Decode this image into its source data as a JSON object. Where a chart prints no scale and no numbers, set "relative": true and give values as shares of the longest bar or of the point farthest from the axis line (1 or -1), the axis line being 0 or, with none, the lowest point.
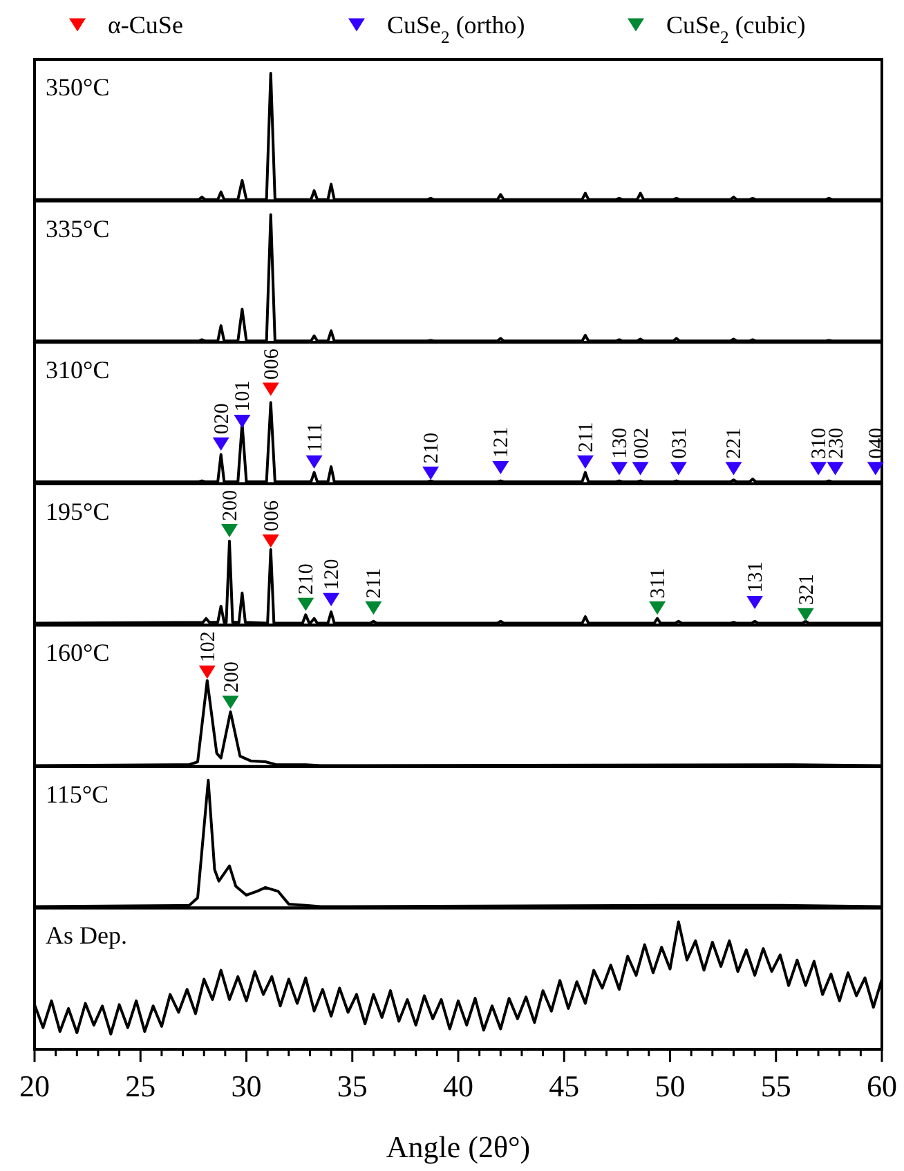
{
  "chart_data": [
    {
      "type": "line",
      "relative": true,
      "xlim": [
        20,
        60
      ],
      "annotations": [
        "350°C"
      ],
      "series": [
        {
          "color": "#000000",
          "x": [
            20,
            27.75,
            27.9,
            28.05,
            28.65,
            28.8,
            28.95,
            29.6,
            29.8,
            30.0,
            30.95,
            31.15,
            31.35,
            33.05,
            33.2,
            33.35,
            33.85,
            34.0,
            34.15,
            38.55,
            38.7,
            38.85,
            41.85,
            42.0,
            42.15,
            45.85,
            46.0,
            46.15,
            47.45,
            47.6,
            47.75,
            48.45,
            48.6,
            48.75,
            50.15,
            50.3,
            50.45,
            52.85,
            53.0,
            53.15,
            53.75,
            53.9,
            54.05,
            57.35,
            57.5,
            57.65,
            60
          ],
          "values": [
            0.01,
            0.01,
            0.03,
            0.01,
            0.01,
            0.07,
            0.01,
            0.01,
            0.16,
            0.01,
            0.01,
            1,
            0.01,
            0.01,
            0.08,
            0.01,
            0.01,
            0.13,
            0.01,
            0.01,
            0.02,
            0.01,
            0.01,
            0.05,
            0.01,
            0.01,
            0.06,
            0.01,
            0.01,
            0.02,
            0.01,
            0.01,
            0.06,
            0.01,
            0.01,
            0.02,
            0.01,
            0.01,
            0.03,
            0.01,
            0.01,
            0.02,
            0.01,
            0.01,
            0.02,
            0.01,
            0.01
          ]
        }
      ]
    },
    {
      "type": "line",
      "relative": true,
      "xlim": [
        20,
        60
      ],
      "annotations": [
        "335°C"
      ],
      "series": [
        {
          "color": "#000000",
          "x": [
            20,
            27.75,
            27.9,
            28.05,
            28.65,
            28.8,
            28.95,
            29.6,
            29.8,
            30.0,
            30.95,
            31.15,
            31.35,
            33.05,
            33.2,
            33.35,
            33.85,
            34.0,
            34.15,
            38.55,
            38.7,
            38.85,
            41.85,
            42.0,
            42.15,
            45.85,
            46.0,
            46.15,
            47.45,
            47.6,
            47.75,
            48.45,
            48.6,
            48.75,
            50.15,
            50.3,
            50.45,
            52.85,
            53.0,
            53.15,
            53.75,
            53.9,
            54.05,
            57.35,
            57.5,
            57.65,
            60
          ],
          "values": [
            0.01,
            0.01,
            0.02,
            0.01,
            0.01,
            0.13,
            0.01,
            0.01,
            0.26,
            0.01,
            0.01,
            1,
            0.01,
            0.01,
            0.05,
            0.01,
            0.01,
            0.09,
            0.01,
            0.01,
            0.015,
            0.01,
            0.01,
            0.03,
            0.01,
            0.01,
            0.055,
            0.01,
            0.01,
            0.02,
            0.01,
            0.01,
            0.025,
            0.01,
            0.01,
            0.03,
            0.01,
            0.01,
            0.025,
            0.01,
            0.01,
            0.02,
            0.01,
            0.01,
            0.015,
            0.01,
            0.01
          ]
        }
      ]
    },
    {
      "type": "line",
      "relative": true,
      "xlim": [
        20,
        60
      ],
      "legend": "top",
      "annotations": [
        "310°C",
        {
          "text": "020",
          "x": 28.8,
          "y": 0.42
        },
        {
          "text": "101",
          "x": 29.8,
          "y": 0.66
        },
        {
          "text": "006",
          "x": 31.15,
          "y": 1
        },
        {
          "text": "111",
          "x": 33.2,
          "y": 0.23
        },
        {
          "text": "210",
          "x": 38.7,
          "y": 0.11
        },
        {
          "text": "121",
          "x": 42.0,
          "y": 0.17
        },
        {
          "text": "211",
          "x": 46.0,
          "y": 0.23
        },
        {
          "text": "130",
          "x": 47.6,
          "y": 0.16
        },
        {
          "text": "002",
          "x": 48.6,
          "y": 0.16
        },
        {
          "text": "031",
          "x": 50.4,
          "y": 0.16
        },
        {
          "text": "221",
          "x": 53.0,
          "y": 0.16
        },
        {
          "text": "310",
          "x": 57.0,
          "y": 0.16
        },
        {
          "text": "230",
          "x": 57.8,
          "y": 0.16
        },
        {
          "text": "040",
          "x": 59.7,
          "y": 0.16
        }
      ],
      "series": [
        {
          "color": "#000000",
          "x": [
            20,
            27.75,
            27.9,
            28.05,
            28.65,
            28.8,
            28.95,
            29.6,
            29.8,
            30.0,
            30.95,
            31.15,
            31.35,
            33.05,
            33.2,
            33.35,
            33.85,
            34.0,
            34.15,
            38.55,
            38.7,
            38.85,
            41.85,
            42.0,
            42.15,
            45.85,
            46.0,
            46.15,
            47.45,
            47.6,
            47.75,
            48.45,
            48.6,
            48.75,
            50.15,
            50.3,
            50.45,
            52.85,
            53.0,
            53.15,
            53.75,
            53.9,
            54.05,
            57.35,
            57.5,
            57.65,
            60
          ],
          "values": [
            0.02,
            0.02,
            0.03,
            0.02,
            0.02,
            0.31,
            0.02,
            0.02,
            0.64,
            0.02,
            0.02,
            0.86,
            0.02,
            0.02,
            0.12,
            0.02,
            0.02,
            0.18,
            0.02,
            0.02,
            0.03,
            0.02,
            0.02,
            0.03,
            0.02,
            0.02,
            0.12,
            0.02,
            0.02,
            0.03,
            0.02,
            0.02,
            0.03,
            0.02,
            0.02,
            0.03,
            0.02,
            0.02,
            0.04,
            0.02,
            0.02,
            0.05,
            0.02,
            0.02,
            0.03,
            0.02,
            0.02
          ]
        },
        {
          "type": "scatter",
          "name": "α-CuSe",
          "color": "#ff0000",
          "marker": "triangle",
          "x": [
            31.15
          ],
          "values": [
            1
          ]
        },
        {
          "type": "scatter",
          "name": "CuSe$_{2}$ (ortho)",
          "color": "#3300ff",
          "marker": "triangle",
          "x": [
            28.8,
            29.8,
            33.2,
            38.7,
            42.0,
            46.0,
            47.6,
            48.6,
            50.4,
            53.0,
            57.0,
            57.8,
            59.7
          ],
          "values": [
            0.42,
            0.66,
            0.23,
            0.11,
            0.17,
            0.23,
            0.16,
            0.16,
            0.16,
            0.16,
            0.16,
            0.16,
            0.16
          ]
        }
      ]
    },
    {
      "type": "line",
      "relative": true,
      "xlim": [
        20,
        60
      ],
      "annotations": [
        "195°C",
        {
          "text": "200",
          "x": 29.2,
          "y": 1
        },
        {
          "text": "006",
          "x": 31.15,
          "y": 0.89
        },
        {
          "text": "210",
          "x": 32.8,
          "y": 0.22
        },
        {
          "text": "120",
          "x": 34.0,
          "y": 0.27
        },
        {
          "text": "211",
          "x": 36.0,
          "y": 0.18
        },
        {
          "text": "311",
          "x": 49.4,
          "y": 0.18
        },
        {
          "text": "131",
          "x": 54.0,
          "y": 0.24
        },
        {
          "text": "321",
          "x": 56.4,
          "y": 0.11
        }
      ],
      "series": [
        {
          "color": "#000000",
          "x": [
            20,
            27.95,
            28.1,
            28.25,
            28.65,
            28.8,
            28.95,
            29.05,
            29.2,
            29.35,
            29.65,
            29.8,
            29.95,
            31.0,
            31.15,
            31.3,
            32.65,
            32.8,
            32.95,
            33.05,
            33.2,
            33.35,
            33.85,
            34.0,
            34.15,
            35.85,
            36.0,
            36.15,
            41.85,
            42.0,
            42.15,
            45.85,
            46.0,
            46.15,
            49.25,
            49.4,
            49.55,
            50.25,
            50.4,
            50.55,
            52.85,
            53.0,
            53.15,
            53.85,
            54.0,
            54.15,
            56.25,
            56.4,
            56.55,
            60
          ],
          "values": [
            0.02,
            0.03,
            0.07,
            0.03,
            0.03,
            0.2,
            0.03,
            0.03,
            0.89,
            0.03,
            0.03,
            0.34,
            0.03,
            0.02,
            0.8,
            0.02,
            0.02,
            0.11,
            0.03,
            0.03,
            0.07,
            0.02,
            0.02,
            0.14,
            0.02,
            0.02,
            0.04,
            0.02,
            0.02,
            0.04,
            0.02,
            0.02,
            0.09,
            0.02,
            0.02,
            0.07,
            0.02,
            0.02,
            0.04,
            0.02,
            0.02,
            0.03,
            0.02,
            0.02,
            0.04,
            0.02,
            0.02,
            0.04,
            0.02,
            0.02
          ]
        },
        {
          "type": "scatter",
          "name": "α-CuSe",
          "color": "#ff0000",
          "marker": "triangle",
          "x": [
            31.15
          ],
          "values": [
            0.89
          ]
        },
        {
          "type": "scatter",
          "name": "CuSe$_{2}$ (ortho)",
          "color": "#3300ff",
          "marker": "triangle",
          "x": [
            34.0,
            54.0
          ],
          "values": [
            0.27,
            0.24
          ]
        },
        {
          "type": "scatter",
          "name": "CuSe$_{2}$ (cubic)",
          "color": "#008833",
          "marker": "triangle",
          "x": [
            29.2,
            32.8,
            36.0,
            49.4,
            56.4
          ],
          "values": [
            1,
            0.22,
            0.18,
            0.18,
            0.11
          ]
        }
      ]
    },
    {
      "type": "line",
      "relative": true,
      "xlim": [
        20,
        60
      ],
      "annotations": [
        "160°C",
        {
          "text": "102",
          "x": 28.15,
          "y": 1
        },
        {
          "text": "200",
          "x": 29.25,
          "y": 0.68
        }
      ],
      "series": [
        {
          "color": "#000000",
          "x": [
            20,
            27.3,
            27.7,
            28.15,
            28.6,
            28.8,
            29.25,
            29.7,
            30.2,
            30.9,
            31.4,
            32.8,
            33.5,
            55.8,
            60
          ],
          "values": [
            0.01,
            0.02,
            0.05,
            0.91,
            0.14,
            0.09,
            0.58,
            0.11,
            0.06,
            0.05,
            0.02,
            0.02,
            0.01,
            0.02,
            0.01
          ]
        },
        {
          "type": "scatter",
          "name": "α-CuSe",
          "color": "#ff0000",
          "marker": "triangle",
          "x": [
            28.15
          ],
          "values": [
            1
          ]
        },
        {
          "type": "scatter",
          "name": "CuSe$_{2}$ (cubic)",
          "color": "#008833",
          "marker": "triangle",
          "x": [
            29.25
          ],
          "values": [
            0.68
          ]
        }
      ]
    },
    {
      "type": "line",
      "relative": true,
      "xlim": [
        20,
        60
      ],
      "annotations": [
        "115°C"
      ],
      "series": [
        {
          "color": "#000000",
          "x": [
            20,
            27.3,
            27.7,
            28.2,
            28.5,
            28.7,
            29.2,
            29.5,
            30.0,
            30.5,
            30.9,
            31.5,
            32.0,
            32.8,
            33.5,
            49.6,
            55.3,
            60
          ],
          "values": [
            0.01,
            0.02,
            0.08,
            1,
            0.3,
            0.21,
            0.33,
            0.17,
            0.1,
            0.13,
            0.16,
            0.13,
            0.03,
            0.02,
            0.01,
            0.02,
            0.02,
            0.01
          ]
        }
      ]
    },
    {
      "type": "line",
      "relative": true,
      "xlim": [
        20,
        60
      ],
      "xlabel": "Angle (2θ°)",
      "annotations": [
        "As Dep."
      ],
      "xticks": [
        20,
        {
          "value": 21,
          "label": null
        },
        {
          "value": 22,
          "label": null
        },
        {
          "value": 23,
          "label": null
        },
        {
          "value": 24,
          "label": null
        },
        25,
        {
          "value": 26,
          "label": null
        },
        {
          "value": 27,
          "label": null
        },
        {
          "value": 28,
          "label": null
        },
        {
          "value": 29,
          "label": null
        },
        30,
        {
          "value": 31,
          "label": null
        },
        {
          "value": 32,
          "label": null
        },
        {
          "value": 33,
          "label": null
        },
        {
          "value": 34,
          "label": null
        },
        35,
        {
          "value": 36,
          "label": null
        },
        {
          "value": 37,
          "label": null
        },
        {
          "value": 38,
          "label": null
        },
        {
          "value": 39,
          "label": null
        },
        40,
        {
          "value": 41,
          "label": null
        },
        {
          "value": 42,
          "label": null
        },
        {
          "value": 43,
          "label": null
        },
        {
          "value": 44,
          "label": null
        },
        45,
        {
          "value": 46,
          "label": null
        },
        {
          "value": 47,
          "label": null
        },
        {
          "value": 48,
          "label": null
        },
        {
          "value": 49,
          "label": null
        },
        50,
        {
          "value": 51,
          "label": null
        },
        {
          "value": 52,
          "label": null
        },
        {
          "value": 53,
          "label": null
        },
        {
          "value": 54,
          "label": null
        },
        55,
        {
          "value": 56,
          "label": null
        },
        {
          "value": 57,
          "label": null
        },
        {
          "value": 58,
          "label": null
        },
        {
          "value": 59,
          "label": null
        },
        60
      ],
      "series": [
        {
          "color": "#000000",
          "x": [
            20,
            20.4,
            20.8,
            21.2,
            21.6,
            22,
            22.4,
            22.8,
            23.2,
            23.6,
            24,
            24.4,
            24.8,
            25.2,
            25.6,
            26,
            26.4,
            26.8,
            27.2,
            27.6,
            28,
            28.4,
            28.8,
            29.2,
            29.6,
            30,
            30.4,
            30.8,
            31.2,
            31.6,
            32,
            32.4,
            32.8,
            33.2,
            33.6,
            34,
            34.4,
            34.8,
            35.2,
            35.6,
            36,
            36.4,
            36.8,
            37.2,
            37.6,
            38,
            38.4,
            38.8,
            39.2,
            39.6,
            40,
            40.4,
            40.8,
            41.2,
            41.6,
            42,
            42.4,
            42.8,
            43.2,
            43.6,
            44,
            44.4,
            44.8,
            45.2,
            45.6,
            46,
            46.4,
            46.8,
            47.2,
            47.6,
            48,
            48.4,
            48.8,
            49.2,
            49.6,
            50,
            50.4,
            50.8,
            51.2,
            51.6,
            52,
            52.4,
            52.8,
            53.2,
            53.6,
            54,
            54.4,
            54.8,
            55.2,
            55.6,
            56,
            56.4,
            56.8,
            57.2,
            57.6,
            58,
            58.4,
            58.8,
            59.2,
            59.6,
            60
          ],
          "values": [
            0.35,
            0.17,
            0.38,
            0.14,
            0.32,
            0.13,
            0.36,
            0.19,
            0.34,
            0.12,
            0.35,
            0.17,
            0.38,
            0.14,
            0.34,
            0.18,
            0.43,
            0.29,
            0.47,
            0.28,
            0.55,
            0.39,
            0.62,
            0.39,
            0.57,
            0.38,
            0.61,
            0.43,
            0.57,
            0.34,
            0.55,
            0.36,
            0.56,
            0.3,
            0.47,
            0.26,
            0.48,
            0.29,
            0.43,
            0.2,
            0.43,
            0.25,
            0.46,
            0.22,
            0.39,
            0.19,
            0.42,
            0.24,
            0.39,
            0.16,
            0.38,
            0.19,
            0.4,
            0.15,
            0.34,
            0.16,
            0.4,
            0.24,
            0.41,
            0.21,
            0.46,
            0.3,
            0.54,
            0.32,
            0.53,
            0.36,
            0.62,
            0.48,
            0.66,
            0.47,
            0.73,
            0.58,
            0.82,
            0.6,
            0.8,
            0.63,
            1,
            0.7,
            0.85,
            0.62,
            0.84,
            0.65,
            0.85,
            0.61,
            0.78,
            0.58,
            0.79,
            0.61,
            0.74,
            0.5,
            0.7,
            0.5,
            0.69,
            0.43,
            0.59,
            0.38,
            0.6,
            0.42,
            0.56,
            0.33,
            0.55
          ]
        }
      ]
    }
  ]
}
